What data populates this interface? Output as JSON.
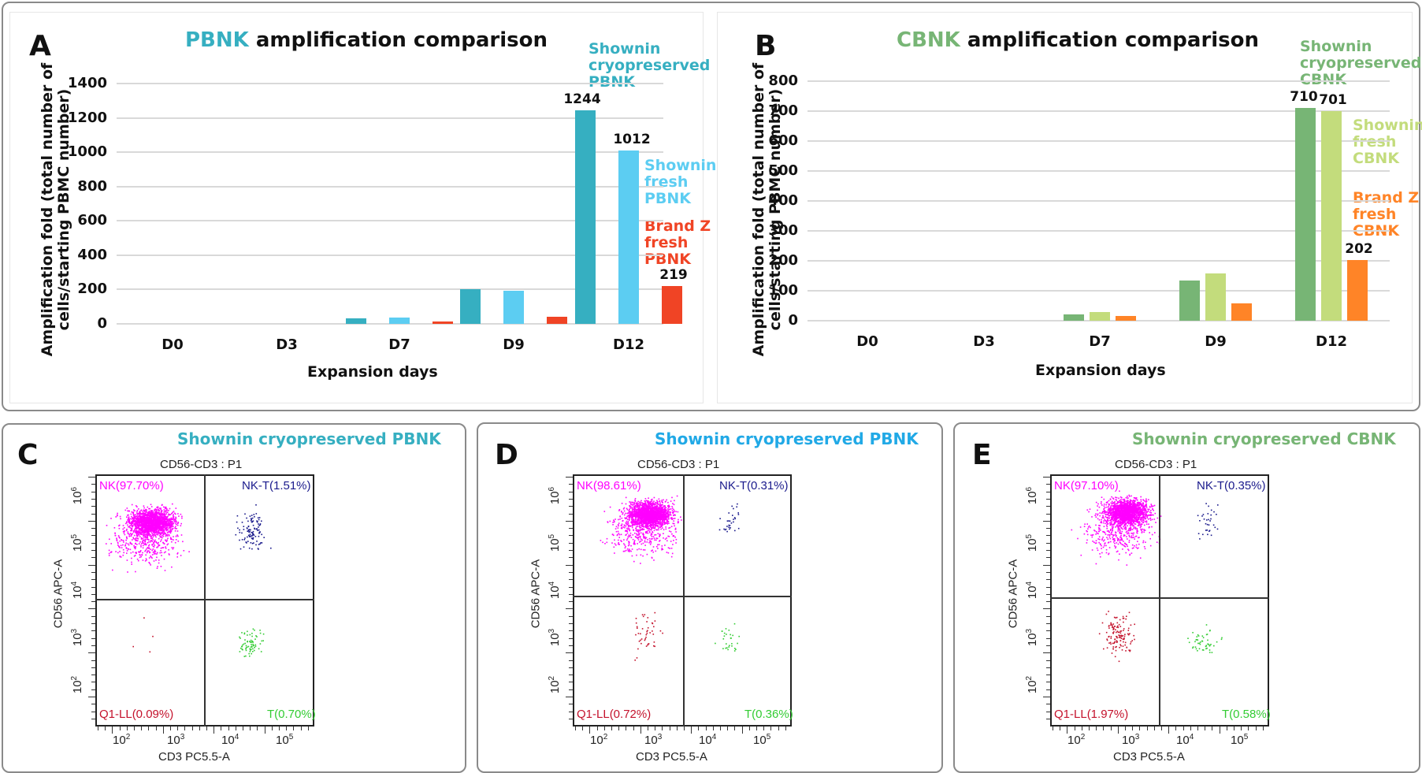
{
  "colors": {
    "pbnk_cryo": "#36afc1",
    "pbnk_fresh": "#5ccdf2",
    "pbnk_brandz": "#f04425",
    "cbnk_cryo": "#77b575",
    "cbnk_fresh": "#c3dc7c",
    "cbnk_brandz": "#ff8427",
    "title_pbnk": "#36afc1",
    "title_cbnk": "#77b575",
    "panel_d_title": "#21a9e6",
    "nk": "#ff00ff",
    "nkt": "#1a1a8c",
    "q1ll": "#c4122c",
    "t": "#33cc33"
  },
  "chart_data": [
    {
      "type": "bar",
      "panel": "A",
      "title_highlight": "PBNK",
      "title_rest": " amplification comparison",
      "ylabel_line1": "Amplification fold (total number of",
      "ylabel_line2": "cells/starting PBMC number)",
      "xlabel": "Expansion days",
      "ylim": [
        0,
        1400
      ],
      "yticks": [
        "0",
        "200",
        "400",
        "600",
        "800",
        "1000",
        "1200",
        "1400"
      ],
      "ytick_values": [
        0,
        200,
        400,
        600,
        800,
        1000,
        1200,
        1400
      ],
      "categories": [
        "D0",
        "D3",
        "D7",
        "D9",
        "D12"
      ],
      "grid": true,
      "series": [
        {
          "name": "Shownin cryopreserved PBNK",
          "values": [
            0,
            0,
            32,
            202,
            1244
          ]
        },
        {
          "name": "Shownin fresh PBNK",
          "values": [
            0,
            0,
            37,
            193,
            1012
          ]
        },
        {
          "name": "Brand Z fresh PBNK",
          "values": [
            0,
            0,
            15,
            40,
            219
          ]
        }
      ],
      "data_labels": [
        "1244",
        "1012",
        "219"
      ],
      "annotations": [
        {
          "text": "Shownin\ncryopreserved\nPBNK"
        },
        {
          "text": "Shownin\nfresh\nPBNK"
        },
        {
          "text": "Brand Z\nfresh\nPBNK"
        }
      ]
    },
    {
      "type": "bar",
      "panel": "B",
      "title_highlight": "CBNK",
      "title_rest": " amplification comparison",
      "ylabel_line1": "Amplification fold (total number of",
      "ylabel_line2": "cells/starting PBMC number)",
      "xlabel": "Expansion days",
      "ylim": [
        0,
        800
      ],
      "yticks": [
        "0",
        "100",
        "200",
        "300",
        "400",
        "500",
        "600",
        "700",
        "800"
      ],
      "ytick_values": [
        0,
        100,
        200,
        300,
        400,
        500,
        600,
        700,
        800
      ],
      "categories": [
        "D0",
        "D3",
        "D7",
        "D9",
        "D12"
      ],
      "grid": true,
      "series": [
        {
          "name": "Shownin cryopreserved CBNK",
          "values": [
            0,
            0,
            21,
            135,
            710
          ]
        },
        {
          "name": "Shownin fresh CBNK",
          "values": [
            0,
            0,
            29,
            158,
            701
          ]
        },
        {
          "name": "Brand Z fresh CBNK",
          "values": [
            0,
            0,
            16,
            57,
            202
          ]
        }
      ],
      "data_labels": [
        "710",
        "701",
        "202"
      ],
      "annotations": [
        {
          "text": "Shownin\ncryopreserved\nCBNK"
        },
        {
          "text": "Shownin\nfresh\nCBNK"
        },
        {
          "text": "Brand Z\nfresh\nCBNK"
        }
      ]
    },
    {
      "type": "scatter",
      "panel": "C",
      "title": "Shownin cryopreserved PBNK",
      "gate": "CD56-CD3 : P1",
      "xlabel": "CD3 PC5.5-A",
      "ylabel": "CD56 APC-A",
      "x_decades": [
        "2",
        "3",
        "4",
        "5"
      ],
      "y_decades": [
        "2",
        "3",
        "4",
        "5",
        "6"
      ],
      "quadrants": {
        "nk": "NK(97.70%)",
        "nkt": "NK-T(1.51%)",
        "q1ll": "Q1-LL(0.09%)",
        "t": "T(0.70%)"
      }
    },
    {
      "type": "scatter",
      "panel": "D",
      "title": "Shownin cryopreserved PBNK",
      "gate": "CD56-CD3 : P1",
      "xlabel": "CD3 PC5.5-A",
      "ylabel": "CD56 APC-A",
      "x_decades": [
        "2",
        "3",
        "4",
        "5"
      ],
      "y_decades": [
        "2",
        "3",
        "4",
        "5",
        "6"
      ],
      "quadrants": {
        "nk": "NK(98.61%)",
        "nkt": "NK-T(0.31%)",
        "q1ll": "Q1-LL(0.72%)",
        "t": "T(0.36%)"
      }
    },
    {
      "type": "scatter",
      "panel": "E",
      "title": "Shownin cryopreserved CBNK",
      "gate": "CD56-CD3 : P1",
      "xlabel": "CD3 PC5.5-A",
      "ylabel": "CD56 APC-A",
      "x_decades": [
        "2",
        "3",
        "4",
        "5"
      ],
      "y_decades": [
        "2",
        "3",
        "4",
        "5",
        "6"
      ],
      "quadrants": {
        "nk": "NK(97.10%)",
        "nkt": "NK-T(0.35%)",
        "q1ll": "Q1-LL(1.97%)",
        "t": "T(0.58%)"
      }
    }
  ],
  "panels": {
    "a": "A",
    "b": "B",
    "c": "C",
    "d": "D",
    "e": "E"
  },
  "decade_base": "10"
}
